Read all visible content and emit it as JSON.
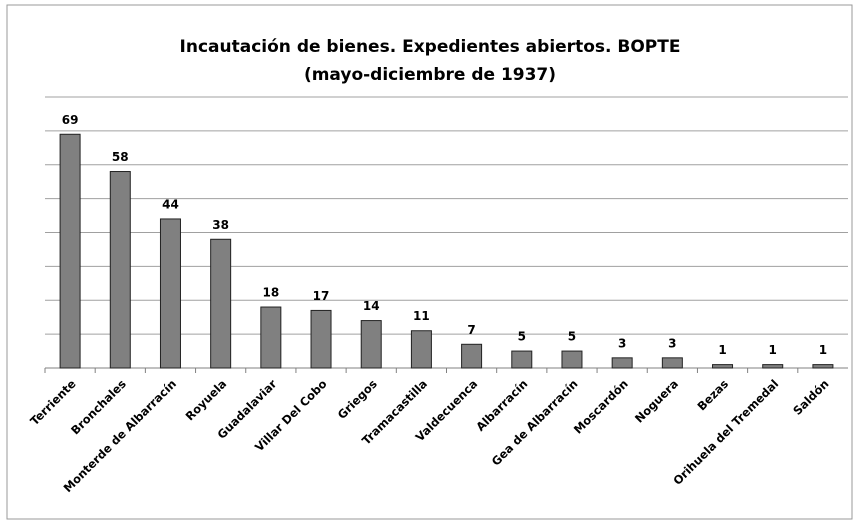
{
  "chart_data": {
    "type": "bar",
    "title": "Incautación de bienes. Expedientes abiertos. BOPTE",
    "subtitle": "(mayo-diciembre de 1937)",
    "categories": [
      "Terriente",
      "Bronchales",
      "Monterde de Albarracín",
      "Royuela",
      "Guadalaviar",
      "Villar Del Cobo",
      "Griegos",
      "Tramacastilla",
      "Valdecuenca",
      "Albarracín",
      "Gea de Albarracín",
      "Moscardón",
      "Noguera",
      "Bezas",
      "Orihuela del Tremedal",
      "Saldón"
    ],
    "values": [
      69,
      58,
      44,
      38,
      18,
      17,
      14,
      11,
      7,
      5,
      5,
      3,
      3,
      1,
      1,
      1
    ],
    "color": "#808080",
    "ylim": [
      0,
      80
    ],
    "yticks": [
      0,
      10,
      20,
      30,
      40,
      50,
      60,
      70,
      80
    ],
    "grid": true
  }
}
